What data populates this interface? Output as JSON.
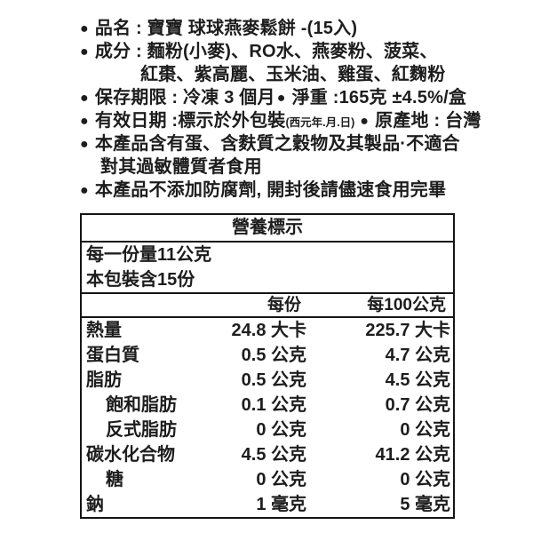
{
  "colors": {
    "background": "#ffffff",
    "text": "#1d1d1d",
    "table_border": "#151515"
  },
  "bullet_icon": "●",
  "product_info": {
    "name_line": "品名 : 寶寶 球球燕麥鬆餅 -(15入)",
    "ingredients_line1": "成分 : 麵粉(小麥)、RO水、燕麥粉、菠菜、",
    "ingredients_line2": "紅棗、紫高麗、玉米油、雞蛋、紅麴粉",
    "shelf_life": "保存期限 : 冷凍 3 個月",
    "net_weight": "淨重 :165克 ±4.5%/盒",
    "expiry_date": "有效日期 :標示於外包裝",
    "expiry_date_format_note": "(西元年.月.日)",
    "origin": "原產地 : 台灣",
    "allergen_line1": "本產品含有蛋、含麩質之穀物及其製品·不適合",
    "allergen_line2": "對其過敏體質者食用",
    "preservative_line": "本產品不添加防腐劑, 開封後請儘速食用完畢"
  },
  "nutrition": {
    "title": "營養標示",
    "serving_size": "每一份量11公克",
    "servings_per_package": "本包裝含15份",
    "columns": {
      "per_serving": "每份",
      "per_100g": "每100公克"
    },
    "rows": [
      {
        "label": "熱量",
        "per_serving": "24.8 大卡",
        "per_100g": "225.7 大卡"
      },
      {
        "label": "蛋白質",
        "per_serving": "0.5 公克",
        "per_100g": "4.7 公克"
      },
      {
        "label": "脂肪",
        "per_serving": "0.5 公克",
        "per_100g": "4.5 公克"
      },
      {
        "label": "飽和脂肪",
        "per_serving": "0.1 公克",
        "per_100g": "0.7 公克"
      },
      {
        "label": "反式脂肪",
        "per_serving": "0 公克",
        "per_100g": "0 公克"
      },
      {
        "label": "碳水化合物",
        "per_serving": "4.5 公克",
        "per_100g": "41.2 公克"
      },
      {
        "label": "糖",
        "per_serving": "0 公克",
        "per_100g": "0 公克"
      },
      {
        "label": "鈉",
        "per_serving": "1 毫克",
        "per_100g": "5 毫克"
      }
    ]
  }
}
